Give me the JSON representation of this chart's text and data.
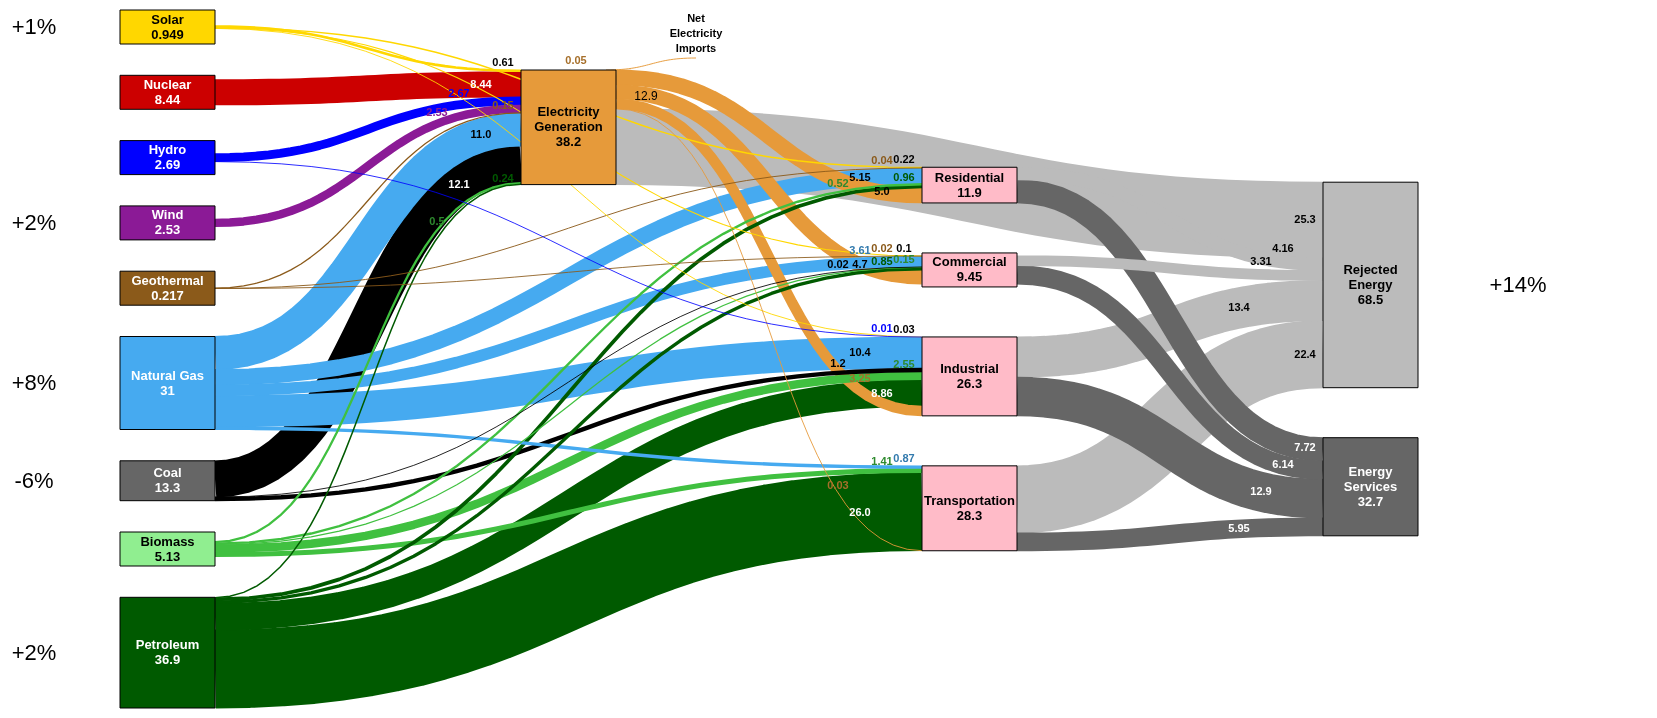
{
  "chart_data": {
    "type": "other",
    "categories": [
      "Solar",
      "Nuclear",
      "Hydro",
      "Wind",
      "Geothermal",
      "Natural Gas",
      "Coal",
      "Biomass",
      "Petroleum",
      "Net Electricity Imports",
      "Electricity Generation",
      "Residential",
      "Commercial",
      "Industrial",
      "Transportation",
      "Rejected Energy",
      "Energy Services"
    ],
    "values": [
      0.949,
      8.44,
      2.69,
      2.53,
      0.217,
      31,
      13.3,
      5.13,
      36.9,
      null,
      38.2,
      11.9,
      9.45,
      26.3,
      28.3,
      68.5,
      32.7
    ],
    "colors": [
      "#ffd700",
      "#cc0000",
      "#0000ff",
      "#8b1a96",
      "#8b5a1a",
      "#46aaf0",
      "#666666",
      "#90ee90",
      "#005a00",
      "#e69a3a",
      "#e69a3a",
      "#ffbbc8",
      "#ffbbc8",
      "#ffbbc8",
      "#ffbbc8",
      "#bbbbbb",
      "#666666"
    ],
    "series": [
      {
        "color": "#ffd700",
        "values": [
          null,
          null,
          null,
          null,
          null,
          null,
          null,
          null,
          null,
          null,
          0.61,
          0.22,
          0.1,
          0.03,
          null,
          null,
          null
        ]
      },
      {
        "color": "#cc0000",
        "values": [
          null,
          null,
          null,
          null,
          null,
          null,
          null,
          null,
          null,
          null,
          8.44,
          null,
          null,
          null,
          null,
          null,
          null
        ]
      },
      {
        "color": "#0000ff",
        "values": [
          null,
          null,
          null,
          null,
          null,
          null,
          null,
          null,
          null,
          null,
          2.67,
          null,
          null,
          0.01,
          null,
          null,
          null
        ]
      },
      {
        "color": "#8b1a96",
        "values": [
          null,
          null,
          null,
          null,
          null,
          null,
          null,
          null,
          null,
          null,
          2.53,
          null,
          null,
          null,
          null,
          null,
          null
        ]
      },
      {
        "color": "#8b5a1a",
        "values": [
          null,
          null,
          null,
          null,
          null,
          null,
          null,
          null,
          null,
          null,
          0.15,
          0.04,
          0.02,
          null,
          null,
          null,
          null
        ]
      },
      {
        "color": "#46aaf0",
        "values": [
          null,
          null,
          null,
          null,
          null,
          null,
          null,
          null,
          null,
          null,
          11.0,
          5.15,
          3.61,
          10.4,
          0.87,
          null,
          null
        ],
        "value_labels": [
          null,
          null,
          null,
          null,
          null,
          null,
          null,
          null,
          null,
          null,
          "11.0",
          "5.15",
          "3.61",
          "10.4",
          "0.87",
          null,
          null
        ]
      },
      {
        "color": "#000000",
        "values": [
          null,
          null,
          null,
          null,
          null,
          null,
          null,
          null,
          null,
          null,
          12.1,
          null,
          0.02,
          1.2,
          null,
          null,
          null
        ]
      },
      {
        "color": "#40c040",
        "values": [
          null,
          null,
          null,
          null,
          null,
          null,
          null,
          null,
          null,
          null,
          0.5,
          0.52,
          0.15,
          2.55,
          1.41,
          null,
          null
        ]
      },
      {
        "color": "#005a00",
        "values": [
          null,
          null,
          null,
          null,
          null,
          null,
          null,
          null,
          null,
          null,
          0.24,
          0.96,
          0.85,
          8.86,
          26.0,
          null,
          null
        ],
        "value_labels": [
          null,
          null,
          null,
          null,
          null,
          null,
          null,
          null,
          null,
          null,
          "0.24",
          "0.96",
          "0.85",
          "8.86",
          "26.0",
          null,
          null
        ]
      },
      {
        "color": "#e69a3a",
        "values": [
          null,
          null,
          null,
          null,
          null,
          null,
          null,
          null,
          null,
          null,
          0.05,
          null,
          null,
          null,
          null,
          null,
          null
        ]
      },
      {
        "color": "#e69a3a",
        "values": [
          null,
          null,
          null,
          null,
          null,
          null,
          null,
          null,
          null,
          null,
          null,
          5.0,
          4.7,
          3.25,
          0.03,
          25.3,
          null
        ],
        "value_labels": [
          null,
          null,
          null,
          null,
          null,
          null,
          null,
          null,
          null,
          null,
          null,
          "5.0",
          "4.7",
          "3.25",
          "0.03",
          "25.3",
          null
        ]
      },
      {
        "values": [
          null,
          null,
          null,
          null,
          null,
          null,
          null,
          null,
          null,
          null,
          null,
          null,
          null,
          null,
          null,
          4.16,
          7.72
        ]
      },
      {
        "values": [
          null,
          null,
          null,
          null,
          null,
          null,
          null,
          null,
          null,
          null,
          null,
          null,
          null,
          null,
          null,
          3.31,
          6.14
        ]
      },
      {
        "values": [
          null,
          null,
          null,
          null,
          null,
          null,
          null,
          null,
          null,
          null,
          null,
          null,
          null,
          null,
          null,
          13.4,
          12.9
        ]
      },
      {
        "values": [
          null,
          null,
          null,
          null,
          null,
          null,
          null,
          null,
          null,
          null,
          null,
          null,
          null,
          null,
          null,
          22.4,
          5.95
        ]
      },
      {
        "values": [
          null,
          null,
          null,
          null,
          null,
          null,
          null,
          null,
          null,
          null,
          null,
          null,
          null,
          null,
          null,
          null,
          null
        ]
      },
      {
        "values": [
          null,
          null,
          null,
          null,
          null,
          null,
          null,
          null,
          null,
          null,
          null,
          null,
          null,
          null,
          null,
          null,
          null
        ]
      }
    ],
    "data_labels": true,
    "annotations": [
      {
        "text": "+1%",
        "x": "Solar"
      },
      {
        "text": "+2%",
        "x": "Wind"
      },
      {
        "text": "+8%",
        "x": "Natural Gas"
      },
      {
        "text": "-6%",
        "x": "Coal"
      },
      {
        "text": "+2%",
        "x": "Petroleum"
      },
      {
        "text": "+14%",
        "x": "Rejected Energy"
      },
      {
        "text": "12.9",
        "x": "Electricity Generation"
      }
    ]
  }
}
